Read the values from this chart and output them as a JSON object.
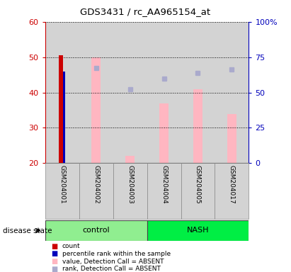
{
  "title": "GDS3431 / rc_AA965154_at",
  "samples": [
    "GSM204001",
    "GSM204002",
    "GSM204003",
    "GSM204004",
    "GSM204005",
    "GSM204017"
  ],
  "groups": [
    "control",
    "control",
    "control",
    "NASH",
    "NASH",
    "NASH"
  ],
  "group_labels": [
    "control",
    "NASH"
  ],
  "control_color": "#90EE90",
  "nash_color": "#00EE44",
  "bar_bottom": 20,
  "ylim": [
    20,
    60
  ],
  "ylim_right": [
    0,
    100
  ],
  "yticks_left": [
    20,
    30,
    40,
    50,
    60
  ],
  "yticks_right": [
    0,
    25,
    50,
    75,
    100
  ],
  "ytick_labels_left": [
    "20",
    "30",
    "40",
    "50",
    "60"
  ],
  "ytick_labels_right": [
    "0",
    "25",
    "50",
    "75",
    "100%"
  ],
  "left_axis_color": "#CC0000",
  "right_axis_color": "#0000BB",
  "count_bars": [
    50.5,
    null,
    null,
    null,
    null,
    null
  ],
  "percentile_bars": [
    46,
    null,
    null,
    null,
    null,
    null
  ],
  "value_absent_bars": [
    null,
    50,
    22,
    37,
    41,
    34
  ],
  "rank_absent_dots": [
    null,
    47,
    41,
    44,
    45.5,
    46.5
  ],
  "count_color": "#CC0000",
  "percentile_color": "#0000BB",
  "value_absent_color": "#FFB6C1",
  "rank_absent_color": "#AAAACC",
  "sample_bg_color": "#D3D3D3",
  "plot_bg_color": "#FFFFFF"
}
